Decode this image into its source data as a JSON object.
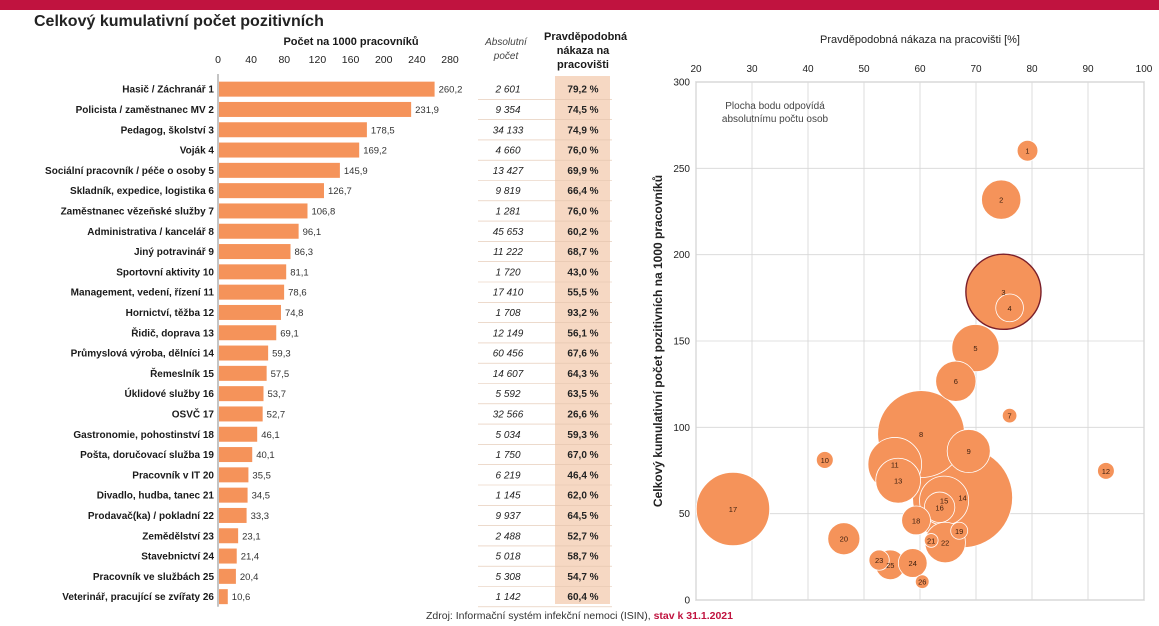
{
  "title": "Celkový kumulativní počet pozitivních",
  "table_headers": {
    "bar": "Počet na 1000 pracovníků",
    "absolute": "Absolutní počet",
    "probability": "Pravděpodobná nákaza na pracovišti"
  },
  "source": {
    "text": "Zdroj: Informační systém infekční nemoci (ISIN), ",
    "highlight": "stav k 31.1.2021"
  },
  "colors": {
    "bar": "#f5935a",
    "bubble": "#f5935a",
    "bubble_outline": "#ffffff",
    "highlight_outline": "#7a1f2a",
    "shade": "#f6d8c3",
    "accent": "#c0133f"
  },
  "chart_data": [
    {
      "type": "bar",
      "orientation": "horizontal",
      "xlabel": "Počet na 1000 pracovníků",
      "xlim": [
        0,
        280
      ],
      "xticks": [
        0,
        40,
        80,
        120,
        160,
        200,
        240,
        280
      ],
      "categories": [
        "Hasič / Záchranář 1",
        "Policista / zaměstnanec MV 2",
        "Pedagog, školství 3",
        "Voják 4",
        "Sociální pracovník / péče o osoby 5",
        "Skladník, expedice, logistika 6",
        "Zaměstnanec vězeňské služby 7",
        "Administrativa / kancelář 8",
        "Jiný potravinář 9",
        "Sportovní aktivity 10",
        "Management, vedení, řízení 11",
        "Hornictví, těžba 12",
        "Řidič, doprava 13",
        "Průmyslová výroba, dělníci 14",
        "Řemeslník 15",
        "Úklidové služby 16",
        "OSVČ 17",
        "Gastronomie, pohostinství 18",
        "Pošta, doručovací služba 19",
        "Pracovník v IT 20",
        "Divadlo, hudba, tanec 21",
        "Prodavač(ka) / pokladní 22",
        "Zemědělství 23",
        "Stavebnictví 24",
        "Pracovník ve službách 25",
        "Veterinář, pracující se zvířaty 26"
      ],
      "values": [
        260.2,
        231.9,
        178.5,
        169.2,
        145.9,
        126.7,
        106.8,
        96.1,
        86.3,
        81.1,
        78.6,
        74.8,
        69.1,
        59.3,
        57.5,
        53.7,
        52.7,
        46.1,
        40.1,
        35.5,
        34.5,
        33.3,
        23.1,
        21.4,
        20.4,
        10.6
      ],
      "value_labels": [
        "260,2",
        "231,9",
        "178,5",
        "169,2",
        "145,9",
        "126,7",
        "106,8",
        "96,1",
        "86,3",
        "81,1",
        "78,6",
        "74,8",
        "69,1",
        "59,3",
        "57,5",
        "53,7",
        "52,7",
        "46,1",
        "40,1",
        "35,5",
        "34,5",
        "33,3",
        "23,1",
        "21,4",
        "20,4",
        "10,6"
      ],
      "absolute": [
        "2 601",
        "9 354",
        "34 133",
        "4 660",
        "13 427",
        "9 819",
        "1 281",
        "45 653",
        "11 222",
        "1 720",
        "17 410",
        "1 708",
        "12 149",
        "60 456",
        "14 607",
        "5 592",
        "32 566",
        "5 034",
        "1 750",
        "6 219",
        "1 145",
        "9 937",
        "2 488",
        "5 018",
        "5 308",
        "1 142"
      ],
      "probability": [
        "79,2 %",
        "74,5 %",
        "74,9 %",
        "76,0 %",
        "69,9 %",
        "66,4 %",
        "76,0 %",
        "60,2 %",
        "68,7 %",
        "43,0 %",
        "55,5 %",
        "93,2 %",
        "56,1 %",
        "67,6 %",
        "64,3 %",
        "63,5 %",
        "26,6 %",
        "59,3 %",
        "67,0 %",
        "46,4 %",
        "62,0 %",
        "64,5 %",
        "52,7 %",
        "58,7 %",
        "54,7 %",
        "60,4 %"
      ]
    },
    {
      "type": "scatter",
      "subtype": "bubble",
      "xlabel": "Pravděpodobná nákaza na pracovišti [%]",
      "ylabel": "Celkový kumulativní počet pozitivních na 1000 pracovníků",
      "xlim": [
        20,
        100
      ],
      "ylim": [
        0,
        300
      ],
      "xticks": [
        20,
        30,
        40,
        50,
        60,
        70,
        80,
        90,
        100
      ],
      "yticks": [
        0,
        50,
        100,
        150,
        200,
        250,
        300
      ],
      "annotation": "Plocha bodu odpovídá absolutnímu počtu osob",
      "grid": true,
      "highlighted_point": 3,
      "points": [
        {
          "label": "1",
          "x": 79.2,
          "y": 260.2,
          "size": 2601
        },
        {
          "label": "2",
          "x": 74.5,
          "y": 231.9,
          "size": 9354
        },
        {
          "label": "3",
          "x": 74.9,
          "y": 178.5,
          "size": 34133
        },
        {
          "label": "4",
          "x": 76.0,
          "y": 169.2,
          "size": 4660
        },
        {
          "label": "5",
          "x": 69.9,
          "y": 145.9,
          "size": 13427
        },
        {
          "label": "6",
          "x": 66.4,
          "y": 126.7,
          "size": 9819
        },
        {
          "label": "7",
          "x": 76.0,
          "y": 106.8,
          "size": 1281
        },
        {
          "label": "8",
          "x": 60.2,
          "y": 96.1,
          "size": 45653
        },
        {
          "label": "9",
          "x": 68.7,
          "y": 86.3,
          "size": 11222
        },
        {
          "label": "10",
          "x": 43.0,
          "y": 81.1,
          "size": 1720
        },
        {
          "label": "11",
          "x": 55.5,
          "y": 78.6,
          "size": 17410
        },
        {
          "label": "12",
          "x": 93.2,
          "y": 74.8,
          "size": 1708
        },
        {
          "label": "13",
          "x": 56.1,
          "y": 69.1,
          "size": 12149
        },
        {
          "label": "14",
          "x": 67.6,
          "y": 59.3,
          "size": 60456
        },
        {
          "label": "15",
          "x": 64.3,
          "y": 57.5,
          "size": 14607
        },
        {
          "label": "16",
          "x": 63.5,
          "y": 53.7,
          "size": 5592
        },
        {
          "label": "17",
          "x": 26.6,
          "y": 52.7,
          "size": 32566
        },
        {
          "label": "18",
          "x": 59.3,
          "y": 46.1,
          "size": 5034
        },
        {
          "label": "19",
          "x": 67.0,
          "y": 40.1,
          "size": 1750
        },
        {
          "label": "20",
          "x": 46.4,
          "y": 35.5,
          "size": 6219
        },
        {
          "label": "21",
          "x": 62.0,
          "y": 34.5,
          "size": 1145
        },
        {
          "label": "22",
          "x": 64.5,
          "y": 33.3,
          "size": 9937
        },
        {
          "label": "23",
          "x": 52.7,
          "y": 23.1,
          "size": 2488
        },
        {
          "label": "24",
          "x": 58.7,
          "y": 21.4,
          "size": 5018
        },
        {
          "label": "25",
          "x": 54.7,
          "y": 20.4,
          "size": 5308
        },
        {
          "label": "26",
          "x": 60.4,
          "y": 10.6,
          "size": 1142
        }
      ]
    }
  ]
}
